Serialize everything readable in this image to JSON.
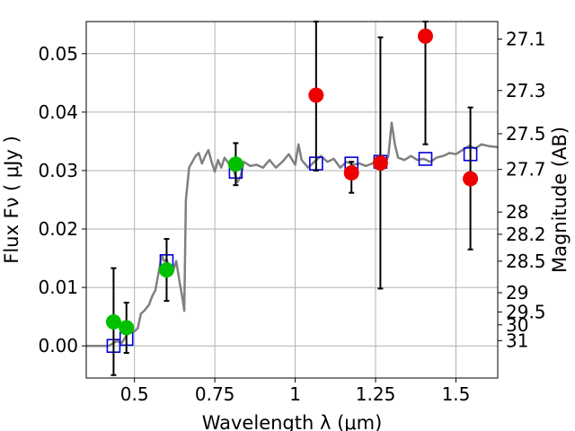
{
  "chart_data": {
    "type": "scatter",
    "title": "",
    "xlabel": "Wavelength  λ (μm)",
    "ylabel": "Flux  Fν  ( μJy )",
    "y2label": "Magnitude (AB)",
    "xlim": [
      0.35,
      1.63
    ],
    "ylim": [
      -0.0055,
      0.0555
    ],
    "grid": true,
    "xticks": [
      {
        "value": 0.5,
        "label": "0.5"
      },
      {
        "value": 0.75,
        "label": "0.75"
      },
      {
        "value": 1.0,
        "label": "1"
      },
      {
        "value": 1.25,
        "label": "1.25"
      },
      {
        "value": 1.5,
        "label": "1.5"
      }
    ],
    "yticks": [
      {
        "value": 0.0,
        "label": "0.00"
      },
      {
        "value": 0.01,
        "label": "0.01"
      },
      {
        "value": 0.02,
        "label": "0.02"
      },
      {
        "value": 0.03,
        "label": "0.03"
      },
      {
        "value": 0.04,
        "label": "0.04"
      },
      {
        "value": 0.05,
        "label": "0.05"
      }
    ],
    "y2ticks": [
      {
        "flux": 0.0525,
        "label": "27.1"
      },
      {
        "flux": 0.0437,
        "label": "27.3"
      },
      {
        "flux": 0.0363,
        "label": "27.5"
      },
      {
        "flux": 0.0302,
        "label": "27.7"
      },
      {
        "flux": 0.0229,
        "label": "28"
      },
      {
        "flux": 0.0191,
        "label": "28.2"
      },
      {
        "flux": 0.0145,
        "label": "28.5"
      },
      {
        "flux": 0.0091,
        "label": "29"
      },
      {
        "flux": 0.0058,
        "label": "29.5"
      },
      {
        "flux": 0.0036,
        "label": "30"
      },
      {
        "flux": 0.0009,
        "label": "31"
      }
    ],
    "colors": {
      "model": "#808080",
      "detected": "#00c000",
      "upper": "#ee0000",
      "synthetic": "#0000dd",
      "grid": "#b0b0b0"
    },
    "series": [
      {
        "kind": "model_spectrum",
        "points": [
          [
            0.35,
            0.0
          ],
          [
            0.42,
            0.0
          ],
          [
            0.445,
            0.0008
          ],
          [
            0.46,
            0.0005
          ],
          [
            0.48,
            0.0022
          ],
          [
            0.5,
            0.0025
          ],
          [
            0.51,
            0.003
          ],
          [
            0.52,
            0.0055
          ],
          [
            0.53,
            0.006
          ],
          [
            0.545,
            0.007
          ],
          [
            0.555,
            0.0085
          ],
          [
            0.565,
            0.0095
          ],
          [
            0.575,
            0.0125
          ],
          [
            0.585,
            0.0155
          ],
          [
            0.592,
            0.0145
          ],
          [
            0.6,
            0.0148
          ],
          [
            0.61,
            0.013
          ],
          [
            0.62,
            0.0128
          ],
          [
            0.63,
            0.0145
          ],
          [
            0.64,
            0.011
          ],
          [
            0.645,
            0.0095
          ],
          [
            0.65,
            0.008
          ],
          [
            0.655,
            0.006
          ],
          [
            0.66,
            0.025
          ],
          [
            0.67,
            0.0305
          ],
          [
            0.68,
            0.0315
          ],
          [
            0.69,
            0.0325
          ],
          [
            0.7,
            0.033
          ],
          [
            0.71,
            0.0312
          ],
          [
            0.72,
            0.0325
          ],
          [
            0.73,
            0.0335
          ],
          [
            0.74,
            0.0315
          ],
          [
            0.75,
            0.0298
          ],
          [
            0.76,
            0.0318
          ],
          [
            0.77,
            0.0305
          ],
          [
            0.78,
            0.0322
          ],
          [
            0.79,
            0.0315
          ],
          [
            0.8,
            0.0305
          ],
          [
            0.81,
            0.0298
          ],
          [
            0.82,
            0.028
          ],
          [
            0.83,
            0.029
          ],
          [
            0.84,
            0.0315
          ],
          [
            0.86,
            0.0308
          ],
          [
            0.88,
            0.031
          ],
          [
            0.9,
            0.0305
          ],
          [
            0.92,
            0.0318
          ],
          [
            0.94,
            0.0305
          ],
          [
            0.96,
            0.0315
          ],
          [
            0.98,
            0.0328
          ],
          [
            1.0,
            0.031
          ],
          [
            1.01,
            0.0345
          ],
          [
            1.02,
            0.0318
          ],
          [
            1.04,
            0.0305
          ],
          [
            1.06,
            0.0315
          ],
          [
            1.08,
            0.0325
          ],
          [
            1.1,
            0.0315
          ],
          [
            1.12,
            0.032
          ],
          [
            1.14,
            0.0305
          ],
          [
            1.16,
            0.0315
          ],
          [
            1.18,
            0.031
          ],
          [
            1.2,
            0.0312
          ],
          [
            1.22,
            0.0308
          ],
          [
            1.24,
            0.0312
          ],
          [
            1.26,
            0.0318
          ],
          [
            1.27,
            0.0305
          ],
          [
            1.28,
            0.0312
          ],
          [
            1.29,
            0.0325
          ],
          [
            1.3,
            0.0382
          ],
          [
            1.31,
            0.0345
          ],
          [
            1.32,
            0.0322
          ],
          [
            1.34,
            0.0318
          ],
          [
            1.36,
            0.0325
          ],
          [
            1.38,
            0.0318
          ],
          [
            1.4,
            0.032
          ],
          [
            1.42,
            0.0315
          ],
          [
            1.44,
            0.0322
          ],
          [
            1.46,
            0.0325
          ],
          [
            1.48,
            0.033
          ],
          [
            1.5,
            0.0328
          ],
          [
            1.52,
            0.0335
          ],
          [
            1.54,
            0.0342
          ],
          [
            1.56,
            0.0338
          ],
          [
            1.58,
            0.0345
          ],
          [
            1.6,
            0.0342
          ],
          [
            1.63,
            0.034
          ]
        ]
      },
      {
        "kind": "synthetic_photometry",
        "points": [
          [
            0.435,
            0.0
          ],
          [
            0.475,
            0.0012
          ],
          [
            0.6,
            0.0145
          ],
          [
            0.815,
            0.0298
          ],
          [
            1.065,
            0.0312
          ],
          [
            1.175,
            0.0312
          ],
          [
            1.265,
            0.0315
          ],
          [
            1.405,
            0.032
          ],
          [
            1.545,
            0.0328
          ]
        ]
      },
      {
        "kind": "detected",
        "points": [
          {
            "x": 0.435,
            "y": 0.0041,
            "lo": -0.005,
            "hi": 0.0133
          },
          {
            "x": 0.475,
            "y": 0.0031,
            "lo": -0.0012,
            "hi": 0.0074
          },
          {
            "x": 0.6,
            "y": 0.013,
            "lo": 0.0077,
            "hi": 0.0183
          },
          {
            "x": 0.815,
            "y": 0.0311,
            "lo": 0.0275,
            "hi": 0.0347
          }
        ]
      },
      {
        "kind": "upper",
        "points": [
          {
            "x": 1.065,
            "y": 0.0429,
            "lo": 0.03,
            "hi": 0.0555
          },
          {
            "x": 1.175,
            "y": 0.0296,
            "lo": 0.0262,
            "hi": 0.0315
          },
          {
            "x": 1.265,
            "y": 0.0313,
            "lo": 0.0098,
            "hi": 0.0528
          },
          {
            "x": 1.405,
            "y": 0.053,
            "lo": 0.0345,
            "hi": 0.0555
          },
          {
            "x": 1.545,
            "y": 0.0286,
            "lo": 0.0165,
            "hi": 0.0408
          }
        ]
      }
    ]
  }
}
